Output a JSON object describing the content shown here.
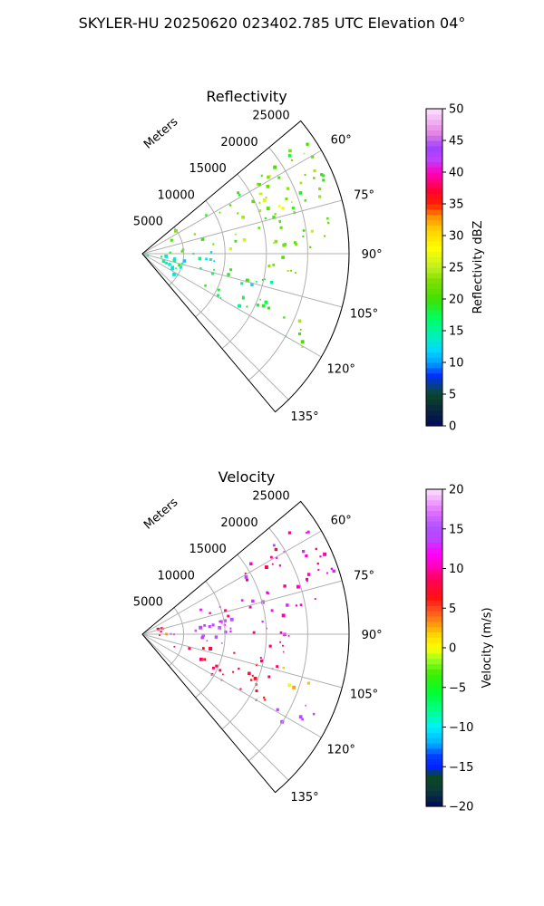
{
  "figure": {
    "suptitle": "SKYLER-HU  20250620  023402.785 UTC Elevation 04°"
  },
  "chart_data": [
    {
      "type": "heatmap",
      "subtype": "polar-sector (PPI radar scan)",
      "title": "Reflectivity",
      "radial_axis_label": "Meters",
      "radial_ticks": [
        5000,
        10000,
        15000,
        20000,
        25000
      ],
      "radial_tick_labels": [
        "5000",
        "10000",
        "15000",
        "20000",
        "25000"
      ],
      "rmax": 25000,
      "angle_ticks_deg": [
        60,
        75,
        90,
        105,
        120,
        135
      ],
      "angle_tick_labels": [
        "60°",
        "75°",
        "90°",
        "105°",
        "120°",
        "135°"
      ],
      "angle_range_deg": [
        50,
        140
      ],
      "angle_convention": "azimuth clockwise from north",
      "grid": true,
      "colorbar": {
        "label": "Reflectivity dBZ",
        "range": [
          0,
          50
        ],
        "ticks": [
          0,
          5,
          10,
          15,
          20,
          25,
          30,
          35,
          40,
          45,
          50
        ],
        "tick_labels": [
          "0",
          "5",
          "10",
          "15",
          "20",
          "25",
          "30",
          "35",
          "40",
          "45",
          "50"
        ],
        "colormap": "pyart_NWSRef-like"
      },
      "echo_regions": [
        {
          "az": [
            55,
            88
          ],
          "r": [
            2000,
            24500
          ],
          "value": 22,
          "spread": 4
        },
        {
          "az": [
            63,
            74
          ],
          "r": [
            12000,
            19000
          ],
          "value": 25,
          "spread": 3
        },
        {
          "az": [
            86,
            100
          ],
          "r": [
            1000,
            9000
          ],
          "value": 13,
          "spread": 3
        },
        {
          "az": [
            100,
            120
          ],
          "r": [
            3000,
            17000
          ],
          "value": 16,
          "spread": 4
        },
        {
          "az": [
            113,
            123
          ],
          "r": [
            17000,
            23000
          ],
          "value": 21,
          "spread": 4
        },
        {
          "az": [
            88,
            98
          ],
          "r": [
            13000,
            19000
          ],
          "value": 21,
          "spread": 3
        },
        {
          "az": [
            92,
            130
          ],
          "r": [
            300,
            5000
          ],
          "value": 15,
          "spread": 3
        }
      ]
    },
    {
      "type": "heatmap",
      "subtype": "polar-sector (PPI radar scan)",
      "title": "Velocity",
      "radial_axis_label": "Meters",
      "radial_ticks": [
        5000,
        10000,
        15000,
        20000,
        25000
      ],
      "radial_tick_labels": [
        "5000",
        "10000",
        "15000",
        "20000",
        "25000"
      ],
      "rmax": 25000,
      "angle_ticks_deg": [
        60,
        75,
        90,
        105,
        120,
        135
      ],
      "angle_tick_labels": [
        "60°",
        "75°",
        "90°",
        "105°",
        "120°",
        "135°"
      ],
      "angle_range_deg": [
        50,
        140
      ],
      "angle_convention": "azimuth clockwise from north",
      "grid": true,
      "colorbar": {
        "label": "Velocity (m/s)",
        "range": [
          -20,
          20
        ],
        "ticks": [
          -20,
          -15,
          -10,
          -5,
          0,
          5,
          10,
          15,
          20
        ],
        "tick_labels": [
          "−20",
          "−15",
          "−10",
          "−5",
          "0",
          "5",
          "10",
          "15",
          "20"
        ],
        "colormap": "pyart_BuDRd18-like"
      },
      "echo_regions": [
        {
          "az": [
            55,
            72
          ],
          "r": [
            6000,
            24500
          ],
          "value": 11,
          "spread": 3
        },
        {
          "az": [
            70,
            90
          ],
          "r": [
            6000,
            22000
          ],
          "value": 12,
          "spread": 3
        },
        {
          "az": [
            80,
            98
          ],
          "r": [
            1500,
            11000
          ],
          "value": 15,
          "spread": 2
        },
        {
          "az": [
            87,
            98
          ],
          "r": [
            14000,
            19000
          ],
          "value": 11,
          "spread": 2
        },
        {
          "az": [
            100,
            122
          ],
          "r": [
            3000,
            17000
          ],
          "value": 8,
          "spread": 2
        },
        {
          "az": [
            113,
            123
          ],
          "r": [
            17000,
            23000
          ],
          "value": 15,
          "spread": 2
        },
        {
          "az": [
            65,
            95
          ],
          "r": [
            300,
            3000
          ],
          "value": 6,
          "spread": 3
        },
        {
          "az": [
            102,
            110
          ],
          "r": [
            17000,
            21000
          ],
          "value": 2,
          "spread": 2
        }
      ]
    }
  ]
}
